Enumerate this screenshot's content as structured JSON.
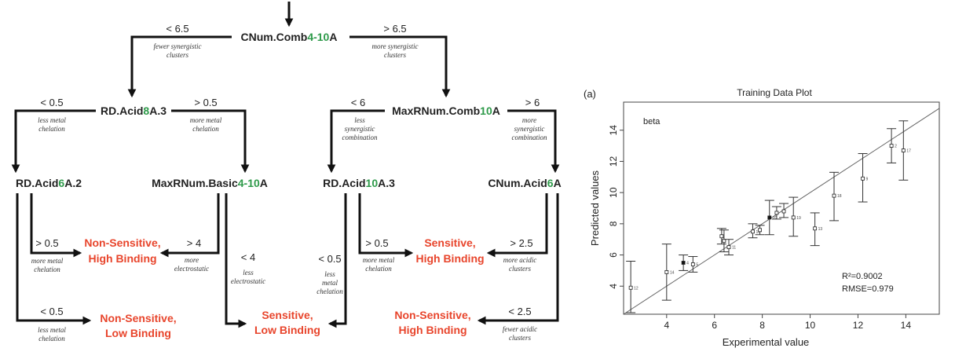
{
  "tree": {
    "root": {
      "pre": "CNum.Comb",
      "green": "4-10",
      "post": "A"
    },
    "root_left": {
      "cond": "< 6.5",
      "note": [
        "fewer synergistic",
        "clusters"
      ]
    },
    "root_right": {
      "cond": "> 6.5",
      "note": [
        "more synergistic",
        "clusters"
      ]
    },
    "n1": {
      "pre": "RD.Acid",
      "green": "8",
      "post": "A.3"
    },
    "n1_left": {
      "cond": "< 0.5",
      "note": [
        "less metal",
        "chelation"
      ]
    },
    "n1_right": {
      "cond": "> 0.5",
      "note": [
        "more metal",
        "chelation"
      ]
    },
    "n2": {
      "pre": "MaxRNum.Comb",
      "green": "10",
      "post": "A"
    },
    "n2_left": {
      "cond": "< 6",
      "note": [
        "less",
        "synergistic",
        "combination"
      ]
    },
    "n2_right": {
      "cond": "> 6",
      "note": [
        "more",
        "synergistic",
        "combination"
      ]
    },
    "n3": {
      "pre": "RD.Acid",
      "green": "6",
      "post": "A.2"
    },
    "n3_upper": {
      "cond": "> 0.5",
      "note": [
        "more metal",
        "chelation"
      ]
    },
    "n3_lower": {
      "cond": "< 0.5",
      "note": [
        "less metal",
        "chelation"
      ]
    },
    "n4": {
      "pre": "MaxRNum.Basic",
      "green": "4-10",
      "post": "A"
    },
    "n4_left": {
      "cond": "> 4",
      "note": [
        "more",
        "electrostatic"
      ]
    },
    "n4_right": {
      "cond": "< 4",
      "note": [
        "less",
        "electrostatic"
      ]
    },
    "n5": {
      "pre": "RD.Acid",
      "green": "10",
      "post": "A.3"
    },
    "n5_left": {
      "cond": "< 0.5",
      "note": [
        "less",
        "metal",
        "chelation"
      ]
    },
    "n5_right": {
      "cond": "> 0.5",
      "note": [
        "more metal",
        "chelation"
      ]
    },
    "n6": {
      "pre": "CNum.Acid",
      "green": "6",
      "post": "A"
    },
    "n6_upper": {
      "cond": "> 2.5",
      "note": [
        "more acidic",
        "clusters"
      ]
    },
    "n6_lower": {
      "cond": "< 2.5",
      "note": [
        "fewer acidic",
        "clusters"
      ]
    },
    "leaf_nshb1": [
      "Non-Sensitive,",
      "High Binding"
    ],
    "leaf_nslb": [
      "Non-Sensitive,",
      "Low Binding"
    ],
    "leaf_slb": [
      "Sensitive,",
      "Low Binding"
    ],
    "leaf_shb": [
      "Sensitive,",
      "High Binding"
    ],
    "leaf_nshb2": [
      "Non-Sensitive,",
      "High Binding"
    ]
  },
  "chart_data": {
    "type": "scatter",
    "panel_label": "(a)",
    "title": "Training Data Plot",
    "xlabel": "Experimental value",
    "ylabel": "Predicted values",
    "xlim": [
      2.2,
      15.4
    ],
    "ylim": [
      2.2,
      15.8
    ],
    "xticks": [
      4,
      6,
      8,
      10,
      12,
      14
    ],
    "yticks": [
      4,
      6,
      8,
      10,
      12,
      14
    ],
    "legend_text": "beta",
    "annotation_r2": "R²=0.9002",
    "annotation_rmse": "RMSE=0.979",
    "fit_line": [
      [
        2.2,
        2.2
      ],
      [
        15.4,
        15.4
      ]
    ],
    "points": [
      {
        "x": 2.5,
        "y": 3.9,
        "lo": 2.3,
        "hi": 5.6,
        "label": "12",
        "filled": false
      },
      {
        "x": 4.0,
        "y": 4.9,
        "lo": 3.1,
        "hi": 6.7,
        "label": "14",
        "filled": false
      },
      {
        "x": 4.7,
        "y": 5.5,
        "lo": 5.0,
        "hi": 6.0,
        "label": "4",
        "filled": true
      },
      {
        "x": 5.1,
        "y": 5.4,
        "lo": 4.9,
        "hi": 5.9,
        "label": "5",
        "filled": false
      },
      {
        "x": 6.3,
        "y": 7.2,
        "lo": 6.7,
        "hi": 7.7,
        "label": "",
        "filled": false
      },
      {
        "x": 6.4,
        "y": 6.9,
        "lo": 6.2,
        "hi": 7.6,
        "label": "",
        "filled": false
      },
      {
        "x": 6.6,
        "y": 6.5,
        "lo": 6.0,
        "hi": 7.0,
        "label": "11",
        "filled": false
      },
      {
        "x": 7.6,
        "y": 7.5,
        "lo": 7.1,
        "hi": 8.0,
        "label": "10",
        "filled": false
      },
      {
        "x": 7.9,
        "y": 7.6,
        "lo": 7.3,
        "hi": 7.9,
        "label": "",
        "filled": false
      },
      {
        "x": 8.3,
        "y": 8.4,
        "lo": 7.3,
        "hi": 9.5,
        "label": "20",
        "filled": true
      },
      {
        "x": 8.6,
        "y": 8.7,
        "lo": 8.3,
        "hi": 9.1,
        "label": "",
        "filled": false
      },
      {
        "x": 8.9,
        "y": 8.8,
        "lo": 8.4,
        "hi": 9.3,
        "label": "",
        "filled": false
      },
      {
        "x": 9.3,
        "y": 8.4,
        "lo": 7.2,
        "hi": 9.7,
        "label": "19",
        "filled": false
      },
      {
        "x": 10.2,
        "y": 7.7,
        "lo": 6.6,
        "hi": 8.7,
        "label": "13",
        "filled": false
      },
      {
        "x": 11.0,
        "y": 9.8,
        "lo": 8.2,
        "hi": 11.3,
        "label": "18",
        "filled": false
      },
      {
        "x": 12.2,
        "y": 10.9,
        "lo": 9.4,
        "hi": 12.5,
        "label": "9",
        "filled": false
      },
      {
        "x": 13.4,
        "y": 13.0,
        "lo": 11.9,
        "hi": 14.1,
        "label": "2",
        "filled": false
      },
      {
        "x": 13.9,
        "y": 12.7,
        "lo": 10.8,
        "hi": 14.6,
        "label": "17",
        "filled": false
      }
    ]
  }
}
